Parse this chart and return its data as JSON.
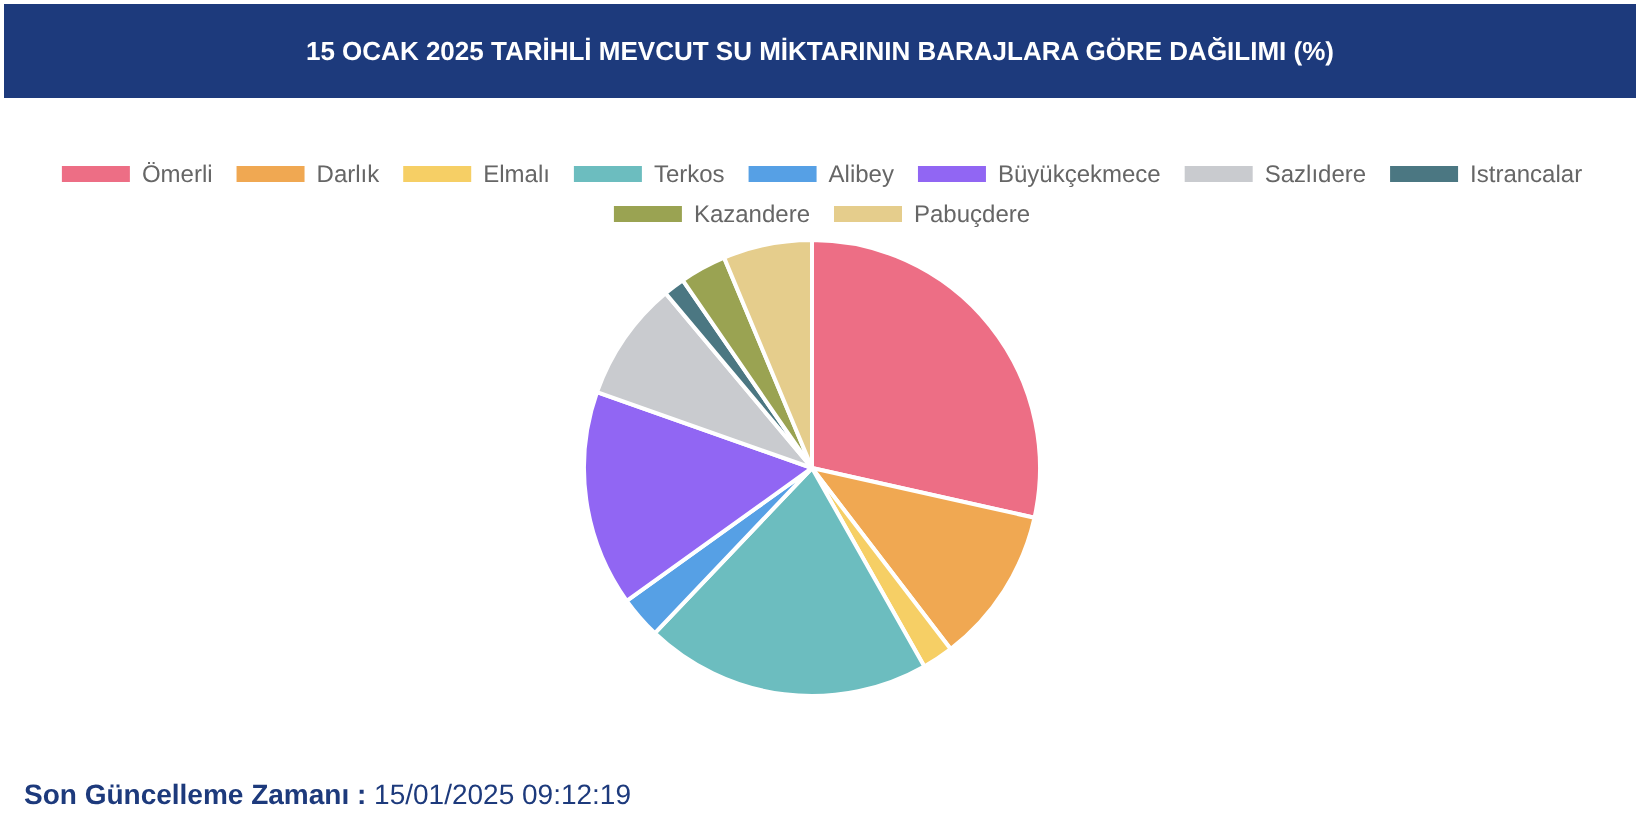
{
  "chart_data": {
    "type": "pie",
    "title": "15 OCAK 2025 TARİHLİ MEVCUT SU MİKTARININ BARAJLARA GÖRE DAĞILIMI (%)",
    "categories": [
      "Ömerli",
      "Darlık",
      "Elmalı",
      "Terkos",
      "Alibey",
      "Büyükçekmece",
      "Sazlıdere",
      "Istrancalar",
      "Kazandere",
      "Pabuçdere"
    ],
    "values": [
      28.5,
      11.1,
      2.2,
      20.3,
      3.0,
      15.3,
      8.5,
      1.5,
      3.3,
      6.3
    ],
    "colors": [
      "#ed6e85",
      "#f0a852",
      "#f6cf65",
      "#6cbdbf",
      "#56a0e5",
      "#9166f3",
      "#c9cbcf",
      "#4b7782",
      "#9aa352",
      "#e5cd8c"
    ],
    "legend": "top",
    "annotations": [
      "Son Güncelleme Zamanı :",
      "15/01/2025 09:12:19"
    ]
  }
}
